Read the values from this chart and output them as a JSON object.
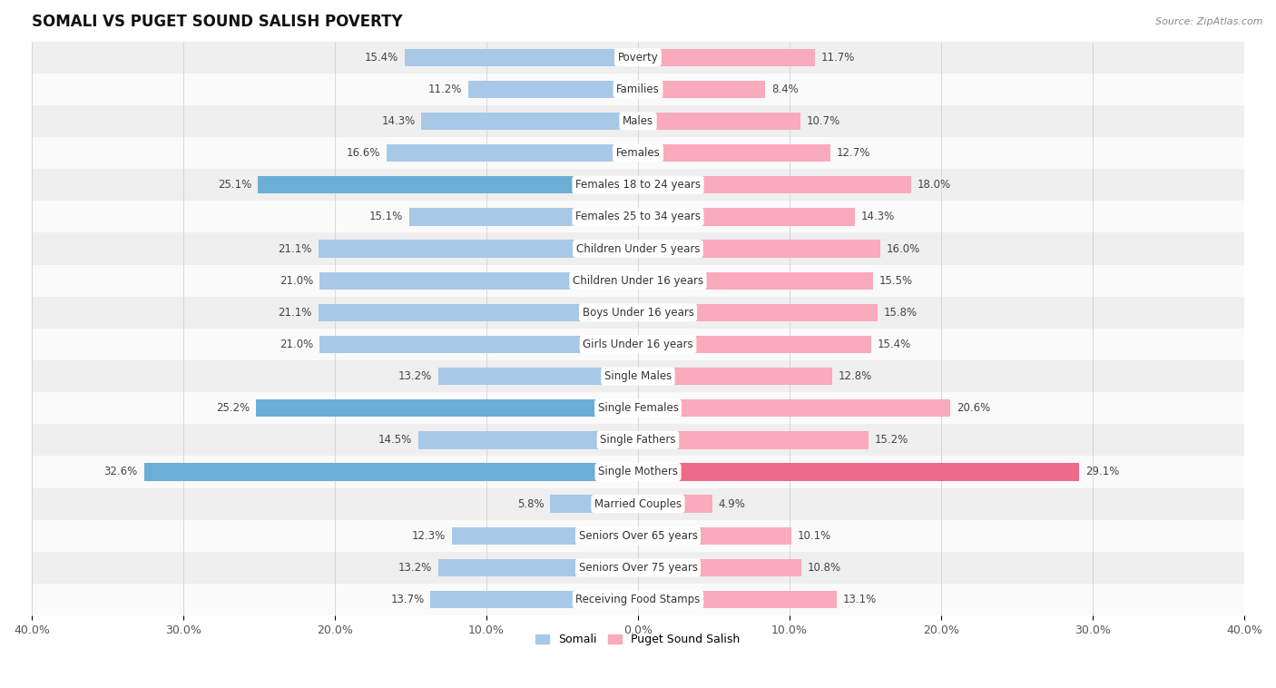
{
  "title": "SOMALI VS PUGET SOUND SALISH POVERTY",
  "source": "Source: ZipAtlas.com",
  "categories": [
    "Poverty",
    "Families",
    "Males",
    "Females",
    "Females 18 to 24 years",
    "Females 25 to 34 years",
    "Children Under 5 years",
    "Children Under 16 years",
    "Boys Under 16 years",
    "Girls Under 16 years",
    "Single Males",
    "Single Females",
    "Single Fathers",
    "Single Mothers",
    "Married Couples",
    "Seniors Over 65 years",
    "Seniors Over 75 years",
    "Receiving Food Stamps"
  ],
  "somali": [
    15.4,
    11.2,
    14.3,
    16.6,
    25.1,
    15.1,
    21.1,
    21.0,
    21.1,
    21.0,
    13.2,
    25.2,
    14.5,
    32.6,
    5.8,
    12.3,
    13.2,
    13.7
  ],
  "puget": [
    11.7,
    8.4,
    10.7,
    12.7,
    18.0,
    14.3,
    16.0,
    15.5,
    15.8,
    15.4,
    12.8,
    20.6,
    15.2,
    29.1,
    4.9,
    10.1,
    10.8,
    13.1
  ],
  "somali_color_normal": "#A8C8E8",
  "somali_color_highlight": "#6BAED6",
  "puget_color_normal": "#F9AABB",
  "puget_color_highlight": "#EE6A8A",
  "highlight_somali_indices": [
    4,
    11,
    13
  ],
  "highlight_puget_indices": [
    13
  ],
  "bg_row_odd": "#EFEFEF",
  "bg_row_even": "#FAFAFA",
  "xlim": 40.0,
  "bar_height": 0.55,
  "label_font_size": 8.5,
  "legend_somali": "Somali",
  "legend_puget": "Puget Sound Salish",
  "x_ticks": [
    -40,
    -30,
    -20,
    -10,
    0,
    10,
    20,
    30,
    40
  ]
}
